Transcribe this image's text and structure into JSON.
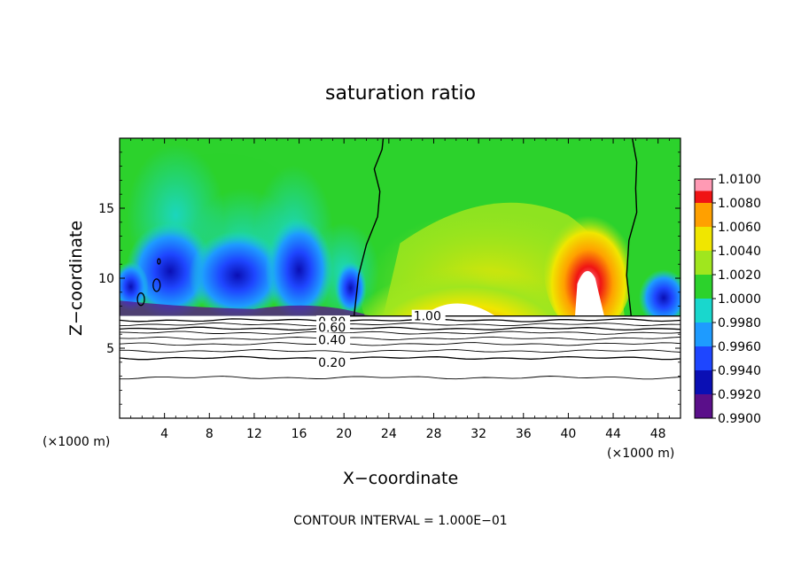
{
  "chart_data": {
    "type": "heatmap",
    "title": "saturation ratio",
    "xlabel": "X−coordinate",
    "ylabel": "Z−coordinate",
    "x_unit_left": "(×1000 m)",
    "x_unit_right": "(×1000 m)",
    "footer": "CONTOUR INTERVAL = 1.000E−01",
    "xlim": [
      0,
      50
    ],
    "ylim": [
      0,
      20
    ],
    "x_ticks": [
      4,
      8,
      12,
      16,
      20,
      24,
      28,
      32,
      36,
      40,
      44,
      48
    ],
    "y_ticks": [
      5,
      10,
      15
    ],
    "grid": false,
    "colorbar": {
      "levels": [
        "0.9900",
        "0.9920",
        "0.9940",
        "0.9960",
        "0.9980",
        "1.0000",
        "1.0020",
        "1.0040",
        "1.0060",
        "1.0080",
        "1.0100"
      ],
      "colors": [
        "#5a0f8a",
        "#0a0fb4",
        "#1e46ff",
        "#1e9bff",
        "#19d7cd",
        "#2cd22c",
        "#a0e61e",
        "#f0e600",
        "#ffa000",
        "#f01414",
        "#ff9ab4"
      ]
    },
    "contour_labels": [
      {
        "text": "1.00",
        "x": 26.2,
        "z": 7.3
      },
      {
        "text": "0.80",
        "x": 17.7,
        "z": 6.9
      },
      {
        "text": "0.60",
        "x": 17.7,
        "z": 6.5
      },
      {
        "text": "0.40",
        "x": 17.7,
        "z": 5.6
      },
      {
        "text": "0.20",
        "x": 17.7,
        "z": 4.0
      }
    ],
    "layer_contours": [
      {
        "value": 0.9,
        "z": 7.0
      },
      {
        "value": 0.8,
        "z": 6.7
      },
      {
        "value": 0.7,
        "z": 6.4
      },
      {
        "value": 0.6,
        "z": 6.1
      },
      {
        "value": 0.5,
        "z": 5.7
      },
      {
        "value": 0.4,
        "z": 5.3
      },
      {
        "value": 0.3,
        "z": 4.8
      },
      {
        "value": 0.2,
        "z": 4.3
      },
      {
        "value": 0.1,
        "z": 2.9
      }
    ],
    "cloud_base_z": 7.3,
    "unity_contour_left": [
      [
        20.9,
        7.3
      ],
      [
        21.3,
        10.2
      ],
      [
        22.0,
        12.4
      ],
      [
        23.0,
        14.4
      ],
      [
        23.2,
        16.2
      ],
      [
        22.7,
        17.8
      ],
      [
        23.4,
        19.2
      ],
      [
        23.5,
        20
      ]
    ],
    "unity_contour_right": [
      [
        45.6,
        7.3
      ],
      [
        45.2,
        10.2
      ],
      [
        45.4,
        12.7
      ],
      [
        46.1,
        14.7
      ],
      [
        46.0,
        16.4
      ],
      [
        46.1,
        18.3
      ],
      [
        45.7,
        20
      ]
    ],
    "unity_islands": [
      [
        1.9,
        8.5
      ],
      [
        3.3,
        9.5
      ],
      [
        3.5,
        11.2
      ]
    ],
    "supersaturation_peaks": [
      {
        "x": 30.5,
        "z": 8.2,
        "value": 1.01
      },
      {
        "x": 42.0,
        "z": 9.5,
        "value": 1.01
      },
      {
        "x": 42.0,
        "z": 12.0,
        "value": 1.006
      }
    ],
    "subsaturation_minima": [
      {
        "x": 16.0,
        "z": 8.5,
        "value": 0.99
      },
      {
        "x": 4.0,
        "z": 8.6,
        "value": 0.99
      },
      {
        "x": 48.5,
        "z": 8.0,
        "value": 0.99
      }
    ]
  }
}
